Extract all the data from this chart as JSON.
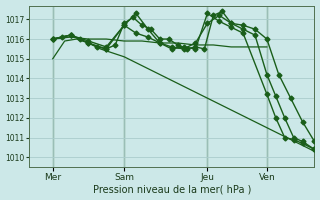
{
  "bg_color": "#cce8e8",
  "plot_bg_color": "#cce8e8",
  "grid_color": "#aacccc",
  "line_color": "#1a5e1a",
  "vline_color": "#4a7a4a",
  "xlabel": "Pression niveau de la mer( hPa )",
  "ylim": [
    1009.5,
    1017.7
  ],
  "yticks": [
    1010,
    1011,
    1012,
    1013,
    1014,
    1015,
    1016,
    1017
  ],
  "xlim": [
    0,
    96
  ],
  "day_positions": [
    8,
    32,
    60,
    80
  ],
  "day_labels": [
    "Mer",
    "Sam",
    "Jeu",
    "Ven"
  ],
  "vline_positions": [
    8,
    32,
    60,
    80
  ],
  "line1": {
    "x": [
      8,
      12,
      16,
      20,
      24,
      28,
      32,
      36,
      40,
      44,
      48,
      52,
      56,
      60,
      64,
      68,
      72,
      76,
      80,
      84,
      88,
      92,
      96
    ],
    "y": [
      1015.0,
      1015.9,
      1016.0,
      1015.8,
      1015.5,
      1015.3,
      1015.1,
      1014.8,
      1014.5,
      1014.2,
      1013.9,
      1013.6,
      1013.3,
      1013.0,
      1012.7,
      1012.4,
      1012.1,
      1011.8,
      1011.5,
      1011.2,
      1010.9,
      1010.6,
      1010.3
    ]
  },
  "line2": {
    "x": [
      8,
      14,
      20,
      26,
      32,
      38,
      44,
      50,
      56,
      62,
      68,
      74,
      80
    ],
    "y": [
      1016.0,
      1016.1,
      1016.0,
      1016.0,
      1015.9,
      1015.9,
      1015.8,
      1015.8,
      1015.7,
      1015.7,
      1015.6,
      1015.6,
      1015.6
    ]
  },
  "line3": {
    "x": [
      8,
      14,
      20,
      26,
      32,
      36,
      40,
      44,
      48,
      52,
      56,
      60,
      64,
      68,
      72,
      76,
      80,
      84,
      88,
      92,
      96
    ],
    "y": [
      1016.0,
      1016.2,
      1015.8,
      1015.5,
      1016.7,
      1016.3,
      1016.1,
      1015.8,
      1015.6,
      1015.5,
      1015.8,
      1016.8,
      1017.2,
      1016.8,
      1016.7,
      1016.5,
      1016.0,
      1014.2,
      1013.0,
      1011.8,
      1010.8
    ]
  },
  "line4": {
    "x": [
      8,
      11,
      14,
      17,
      20,
      23,
      26,
      29,
      32,
      35,
      38,
      41,
      44,
      47,
      50,
      53,
      56,
      59,
      62,
      65,
      68,
      72,
      76,
      80,
      83,
      86,
      89,
      92,
      96
    ],
    "y": [
      1016.0,
      1016.1,
      1016.2,
      1016.0,
      1015.8,
      1015.6,
      1015.5,
      1015.7,
      1016.8,
      1017.1,
      1016.7,
      1016.5,
      1016.0,
      1016.0,
      1015.7,
      1015.5,
      1015.6,
      1015.5,
      1017.2,
      1017.4,
      1016.8,
      1016.5,
      1016.2,
      1014.2,
      1013.1,
      1012.0,
      1011.0,
      1010.8,
      1010.4
    ]
  },
  "line5": {
    "x": [
      8,
      14,
      20,
      26,
      32,
      36,
      40,
      44,
      48,
      52,
      56,
      60,
      64,
      68,
      72,
      80,
      83,
      86,
      89,
      92,
      96
    ],
    "y": [
      1016.0,
      1016.2,
      1015.9,
      1015.6,
      1016.7,
      1017.3,
      1016.5,
      1015.8,
      1015.5,
      1015.6,
      1015.5,
      1017.3,
      1016.9,
      1016.6,
      1016.3,
      1013.2,
      1012.0,
      1011.0,
      1010.9,
      1010.7,
      1010.4
    ]
  }
}
